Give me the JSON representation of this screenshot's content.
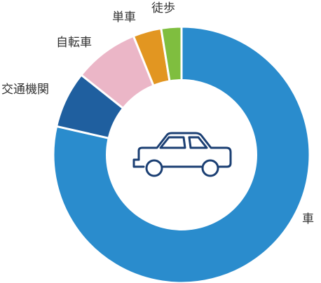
{
  "chart_data": {
    "type": "pie",
    "style": "donut",
    "center_icon": "car-icon",
    "slices": [
      {
        "label": "車",
        "value": 77,
        "color": "#2a8ccd"
      },
      {
        "label": "交通機関",
        "value": 7,
        "color": "#1f5f9f"
      },
      {
        "label": "自転車",
        "value": 8,
        "color": "#ebb6c7"
      },
      {
        "label": "単車",
        "value": 3.5,
        "color": "#e29621"
      },
      {
        "label": "徒歩",
        "value": 2.5,
        "color": "#7fbe3f"
      }
    ]
  },
  "colors": {
    "separator": "#ffffff",
    "center_fill": "#ffffff",
    "icon_stroke": "#1b3f73",
    "label_text": "#333333"
  }
}
